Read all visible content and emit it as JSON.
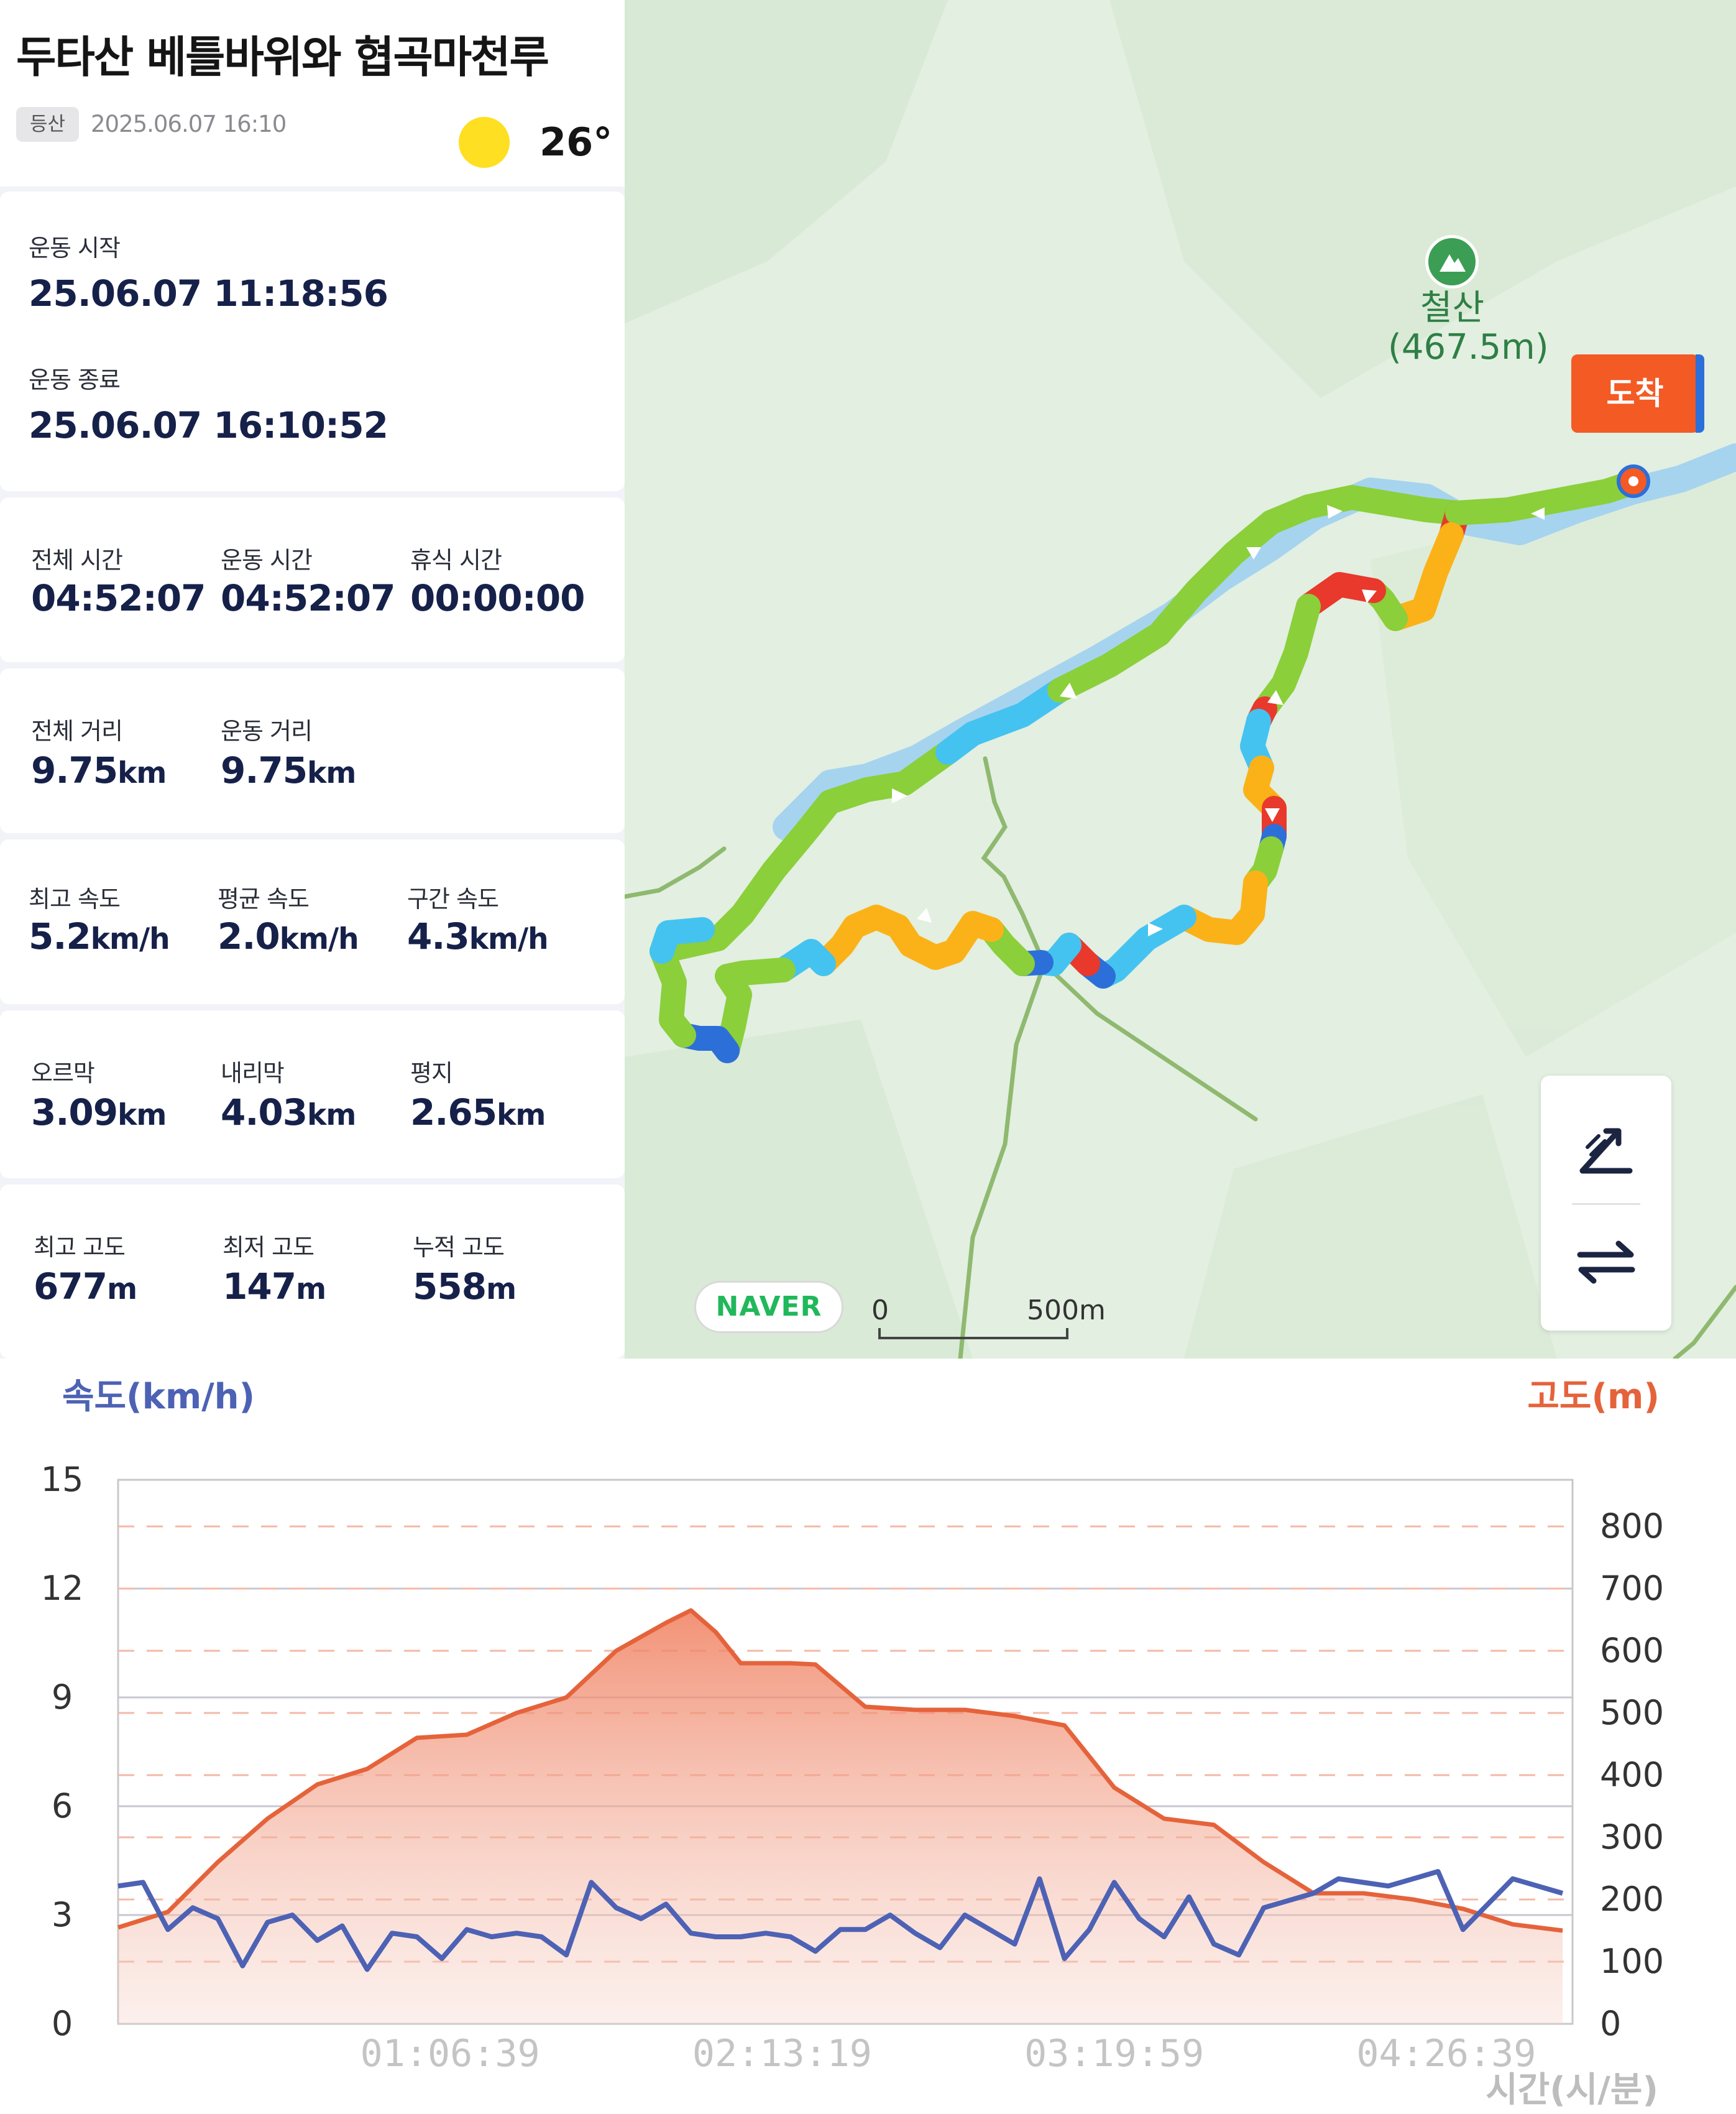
{
  "header": {
    "title": "두타산 베틀바위와 협곡마천루",
    "category": "등산",
    "datetime": "2025.06.07 16:10",
    "temperature": "26°",
    "weather_icon": "sun-icon"
  },
  "times": {
    "start_label": "운동 시작",
    "start_value": "25.06.07 11:18:56",
    "end_label": "운동 종료",
    "end_value": "25.06.07 16:10:52"
  },
  "duration": {
    "total_label": "전체 시간",
    "total_value": "04:52:07",
    "moving_label": "운동 시간",
    "moving_value": "04:52:07",
    "rest_label": "휴식 시간",
    "rest_value": "00:00:00"
  },
  "distance": {
    "total_label": "전체 거리",
    "total_value": "9.75",
    "total_unit": "km",
    "moving_label": "운동 거리",
    "moving_value": "9.75",
    "moving_unit": "km"
  },
  "speed": {
    "max_label": "최고 속도",
    "max_value": "5.2",
    "max_unit": "km/h",
    "avg_label": "평균 속도",
    "avg_value": "2.0",
    "avg_unit": "km/h",
    "section_label": "구간 속도",
    "section_value": "4.3",
    "section_unit": "km/h"
  },
  "terrain": {
    "uphill_label": "오르막",
    "uphill_value": "3.09",
    "uphill_unit": "km",
    "downhill_label": "내리막",
    "downhill_value": "4.03",
    "downhill_unit": "km",
    "flat_label": "평지",
    "flat_value": "2.65",
    "flat_unit": "km"
  },
  "altitude": {
    "max_label": "최고 고도",
    "max_value": "677",
    "max_unit": "m",
    "min_label": "최저 고도",
    "min_value": "147",
    "min_unit": "m",
    "cumulative_label": "누적 고도",
    "cumulative_value": "558",
    "cumulative_unit": "m"
  },
  "map": {
    "peak_name": "철산",
    "peak_elevation": "(467.5m)",
    "arrival_label": "도착",
    "provider": "NAVER",
    "scale_start": "0",
    "scale_end": "500m",
    "controls": [
      "slope-toggle-icon",
      "swap-icon"
    ],
    "colors": {
      "water": "#a6d4ef",
      "trail": "#8fb96f",
      "slow": "#2d6fd8",
      "mid": "#44c3f0",
      "normal": "#8bcf3a",
      "fast": "#fbb218",
      "max": "#e8392c"
    }
  },
  "chart_data": {
    "type": "line",
    "y_left_label": "속도(km/h)",
    "y_right_label": "고도(m)",
    "x_label": "시간(시/분)",
    "x_ticks": [
      "01:06:39",
      "02:13:19",
      "03:19:59",
      "04:26:39"
    ],
    "y_left_ticks": [
      "0",
      "3",
      "6",
      "9",
      "12",
      "15"
    ],
    "y_right_ticks": [
      "0",
      "100",
      "200",
      "300",
      "400",
      "500",
      "600",
      "700",
      "800"
    ],
    "y_left_range": [
      0,
      15
    ],
    "y_right_range": [
      0,
      875
    ],
    "colors": {
      "speed": "#4d62b4",
      "altitude": "#e5633b",
      "left_axis": "#4d62b4",
      "right_axis": "#e5633b"
    },
    "series": [
      {
        "name": "고도(m)",
        "axis": "right",
        "x_minutes": [
          0,
          10,
          20,
          30,
          40,
          50,
          60,
          70,
          80,
          90,
          100,
          110,
          115,
          120,
          125,
          130,
          135,
          140,
          150,
          160,
          170,
          180,
          190,
          200,
          210,
          220,
          230,
          240,
          250,
          260,
          270,
          280,
          290
        ],
        "values": [
          155,
          180,
          260,
          330,
          385,
          410,
          460,
          465,
          500,
          525,
          600,
          645,
          665,
          630,
          580,
          580,
          580,
          578,
          510,
          505,
          505,
          495,
          480,
          380,
          330,
          320,
          260,
          210,
          210,
          200,
          185,
          160,
          150
        ]
      },
      {
        "name": "속도(km/h)",
        "axis": "left",
        "x_minutes": [
          0,
          5,
          10,
          15,
          20,
          25,
          30,
          35,
          40,
          45,
          50,
          55,
          60,
          65,
          70,
          75,
          80,
          85,
          90,
          95,
          100,
          105,
          110,
          115,
          120,
          125,
          130,
          135,
          140,
          145,
          150,
          155,
          160,
          165,
          170,
          175,
          180,
          185,
          190,
          195,
          200,
          205,
          210,
          215,
          220,
          225,
          230,
          235,
          240,
          245,
          250,
          255,
          260,
          265,
          270,
          275,
          280,
          285,
          290
        ],
        "values": [
          3.8,
          3.9,
          2.6,
          3.2,
          2.9,
          1.6,
          2.8,
          3.0,
          2.3,
          2.7,
          1.5,
          2.5,
          2.4,
          1.8,
          2.6,
          2.4,
          2.5,
          2.4,
          1.9,
          3.9,
          3.2,
          2.9,
          3.3,
          2.5,
          2.4,
          2.4,
          2.5,
          2.4,
          2.0,
          2.6,
          2.6,
          3.0,
          2.5,
          2.1,
          3.0,
          2.6,
          2.2,
          4.0,
          1.8,
          2.6,
          3.9,
          2.9,
          2.4,
          3.5,
          2.2,
          1.9,
          3.2,
          3.4,
          3.6,
          4.0,
          3.9,
          3.8,
          4.0,
          4.2,
          2.6,
          3.3,
          4.0,
          3.8,
          3.6
        ]
      }
    ]
  }
}
